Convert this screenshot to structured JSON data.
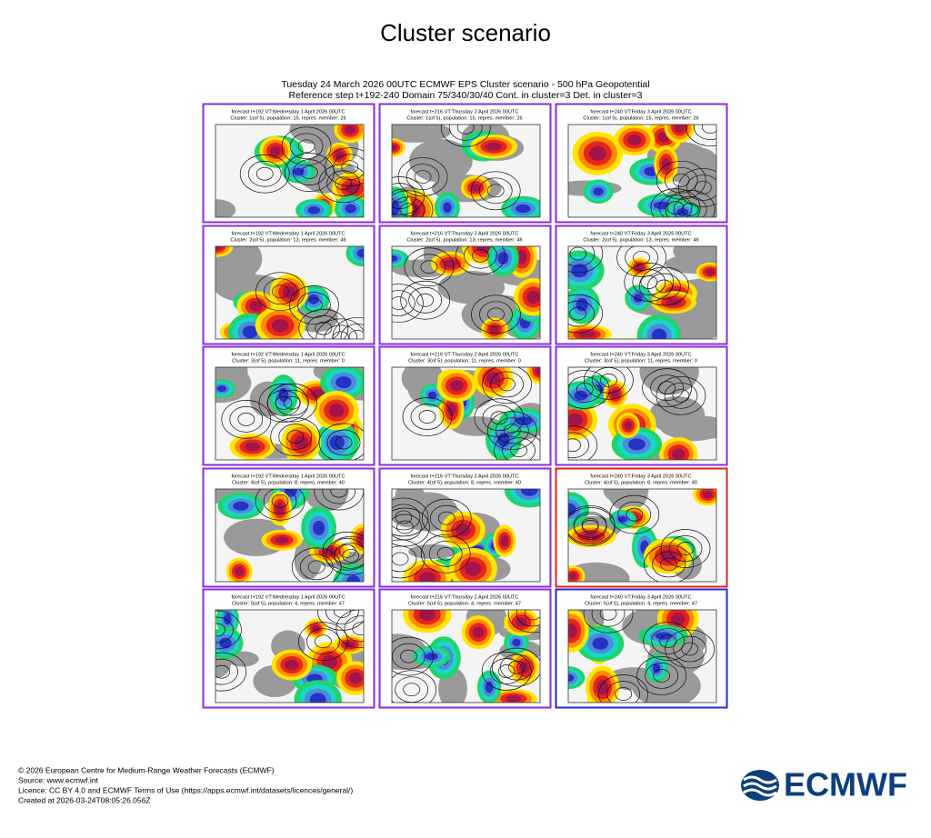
{
  "header": {
    "title": "Cluster scenario"
  },
  "figure": {
    "title_lines": [
      "Tuesday 24 March 2026 00UTC ECMWF EPS Cluster scenario - 500 hPa Geopotential",
      "Reference step t+192-240 Domain 75/340/30/40 Cont. in cluster=3 Det. in cluster=3"
    ],
    "grid": [
      [
        {
          "forecast": "forecast t+192 VT:Wednesday 1 April 2026 00UTC",
          "cluster": "Cluster: 1(of 5), population: 15, repres. member: 26"
        },
        {
          "forecast": "forecast t+216 VT:Thursday 2 April 2026 00UTC",
          "cluster": "Cluster: 1(of 5), population: 15, repres. member: 26"
        },
        {
          "forecast": "forecast t+240 VT:Friday 3 April 2026 00UTC",
          "cluster": "Cluster: 1(of 5), population: 15, repres. member: 26"
        }
      ],
      [
        {
          "forecast": "forecast t+192 VT:Wednesday 1 April 2026 00UTC",
          "cluster": "Cluster: 2(of 5), population: 13, repres. member: 46"
        },
        {
          "forecast": "forecast t+216 VT:Thursday 2 April 2026 00UTC",
          "cluster": "Cluster: 2(of 5), population: 13, repres. member: 46"
        },
        {
          "forecast": "forecast t+240 VT:Friday 3 April 2026 00UTC",
          "cluster": "Cluster: 2(of 5), population: 13, repres. member: 46"
        }
      ],
      [
        {
          "forecast": "forecast t+192 VT:Wednesday 1 April 2026 00UTC",
          "cluster": "Cluster: 3(of 5), population: 11, repres. member: 0"
        },
        {
          "forecast": "forecast t+216 VT:Thursday 2 April 2026 00UTC",
          "cluster": "Cluster: 3(of 5), population: 11, repres. member: 0"
        },
        {
          "forecast": "forecast t+240 VT:Friday 3 April 2026 00UTC",
          "cluster": "Cluster: 3(of 5), population: 11, repres. member: 0"
        }
      ],
      [
        {
          "forecast": "forecast t+192 VT:Wednesday 1 April 2026 00UTC",
          "cluster": "Cluster: 4(of 5), population: 8, repres. member: 40"
        },
        {
          "forecast": "forecast t+216 VT:Thursday 2 April 2026 00UTC",
          "cluster": "Cluster: 4(of 5), population: 8, repres. member: 40"
        },
        {
          "forecast": "forecast t+240 VT:Friday 3 April 2026 00UTC",
          "cluster": "Cluster: 4(of 5), population: 8, repres. member: 40"
        }
      ],
      [
        {
          "forecast": "forecast t+192 VT:Wednesday 1 April 2026 00UTC",
          "cluster": "Cluster: 5(of 5), population: 4, repres. member: 47"
        },
        {
          "forecast": "forecast t+216 VT:Thursday 2 April 2026 00UTC",
          "cluster": "Cluster: 5(of 5), population: 4, repres. member: 47"
        },
        {
          "forecast": "forecast t+240 VT:Friday 3 April 2026 00UTC",
          "cluster": "Cluster: 5(of 5), population: 4, repres. member: 47"
        }
      ]
    ]
  },
  "footer": {
    "lines": [
      "© 2026 European Centre for Medium-Range Weather Forecasts (ECMWF)",
      "Source: www.ecmwf.int",
      "Licence: CC BY 4.0 and ECMWF Terms of Use (https://apps.ecmwf.int/datasets/licences/general/)",
      "Created at 2026-03-24T08:05:26.056Z"
    ],
    "logo": "ECMWF"
  }
}
